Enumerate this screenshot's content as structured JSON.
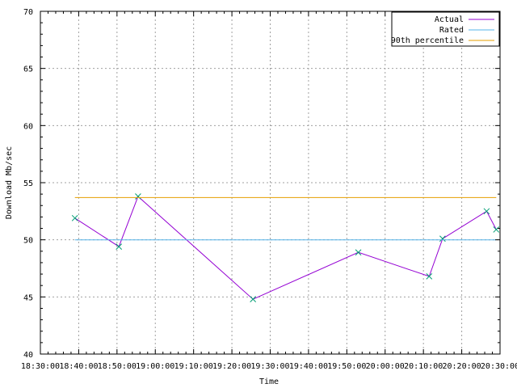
{
  "chart_data": {
    "type": "line",
    "xlabel": "Time",
    "ylabel": "Download Mb/sec",
    "xlim": [
      "18:30:00",
      "20:30:00"
    ],
    "ylim": [
      40,
      70
    ],
    "grid": true,
    "legend_position": "top-right",
    "x_ticks": [
      "18:30:00",
      "18:40:00",
      "18:50:00",
      "19:00:00",
      "19:10:00",
      "19:20:00",
      "19:30:00",
      "19:40:00",
      "19:50:00",
      "20:00:00",
      "20:10:00",
      "20:20:00",
      "20:30:00"
    ],
    "y_ticks": [
      40,
      45,
      50,
      55,
      60,
      65,
      70
    ],
    "series": [
      {
        "name": "Actual",
        "color": "#9400d3",
        "marker": "x",
        "marker_color": "#009e73",
        "points": [
          {
            "x": "18:39:00",
            "y": 51.9
          },
          {
            "x": "18:50:30",
            "y": 49.4
          },
          {
            "x": "18:55:30",
            "y": 53.8
          },
          {
            "x": "19:25:30",
            "y": 44.8
          },
          {
            "x": "19:53:00",
            "y": 48.9
          },
          {
            "x": "20:11:30",
            "y": 46.8
          },
          {
            "x": "20:15:00",
            "y": 50.1
          },
          {
            "x": "20:26:30",
            "y": 52.5
          },
          {
            "x": "20:29:00",
            "y": 50.9
          }
        ]
      },
      {
        "name": "Rated",
        "color": "#56b4e9",
        "points": [
          {
            "x": "18:39:00",
            "y": 50.0
          },
          {
            "x": "20:29:00",
            "y": 50.0
          }
        ]
      },
      {
        "name": "90th percentile",
        "color": "#e69f00",
        "points": [
          {
            "x": "18:39:00",
            "y": 53.7
          },
          {
            "x": "20:29:00",
            "y": 53.7
          }
        ]
      }
    ]
  }
}
